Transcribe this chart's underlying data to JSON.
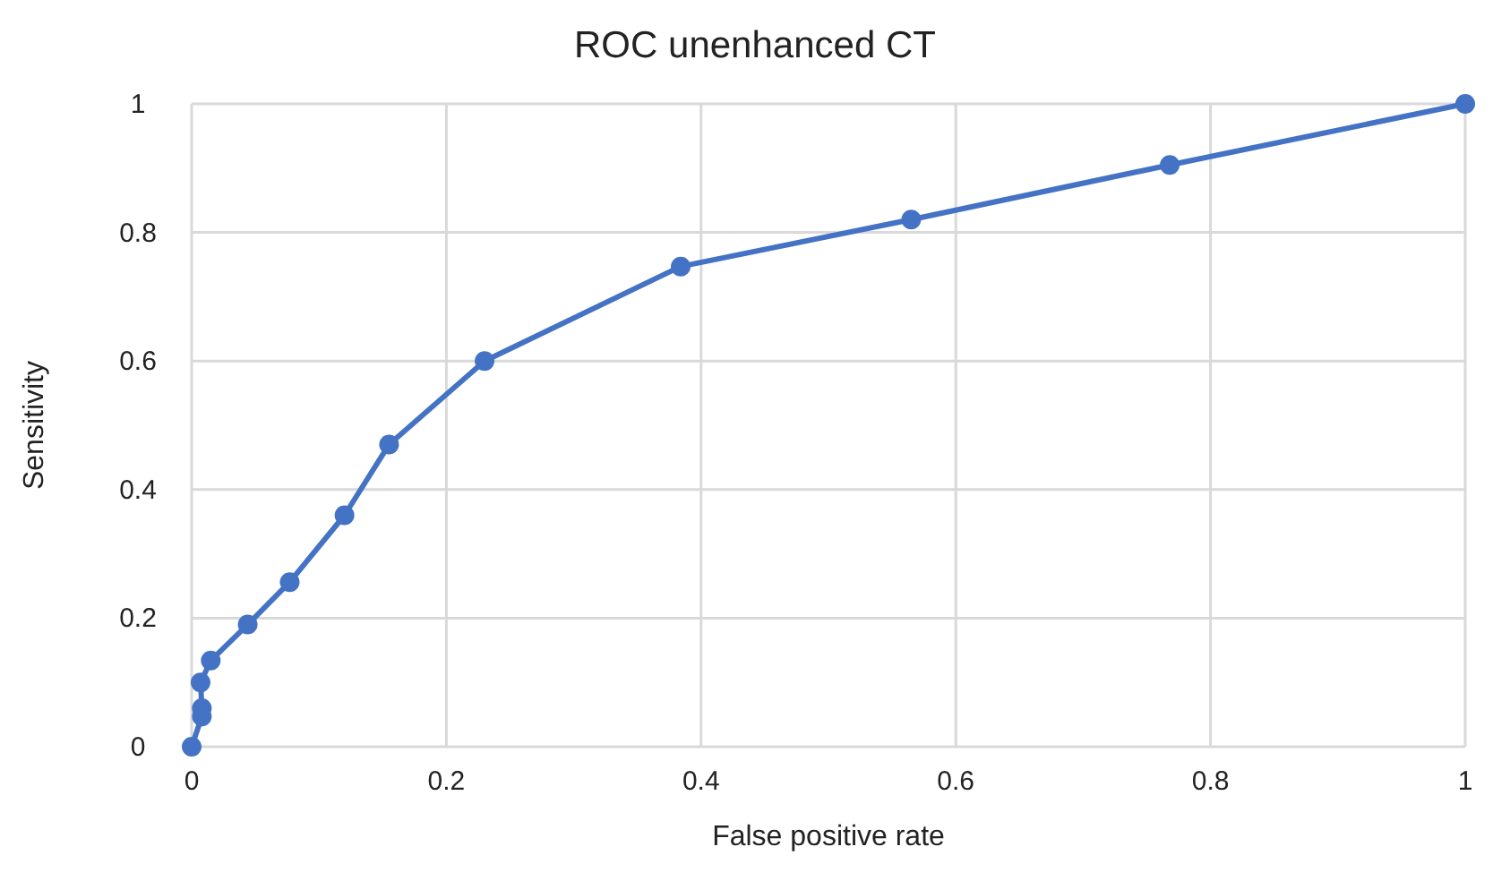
{
  "chart_data": {
    "type": "line",
    "title": "ROC unenhanced CT",
    "xlabel": "False positive rate",
    "ylabel": "Sensitivity",
    "x": [
      0,
      0.008,
      0.008,
      0.007,
      0.015,
      0.044,
      0.077,
      0.12,
      0.155,
      0.23,
      0.384,
      0.565,
      0.768,
      1
    ],
    "values": [
      0,
      0.047,
      0.06,
      0.1,
      0.134,
      0.19,
      0.256,
      0.36,
      0.47,
      0.6,
      0.747,
      0.82,
      0.905,
      1
    ],
    "color": "#4472c4",
    "marker": "circle",
    "line_style": "solid",
    "xlim": [
      0,
      1
    ],
    "ylim": [
      0,
      1
    ],
    "xticks": [
      0,
      0.2,
      0.4,
      0.6,
      0.8,
      1
    ],
    "yticks": [
      0,
      0.2,
      0.4,
      0.6,
      0.8,
      1
    ],
    "grid": true
  }
}
